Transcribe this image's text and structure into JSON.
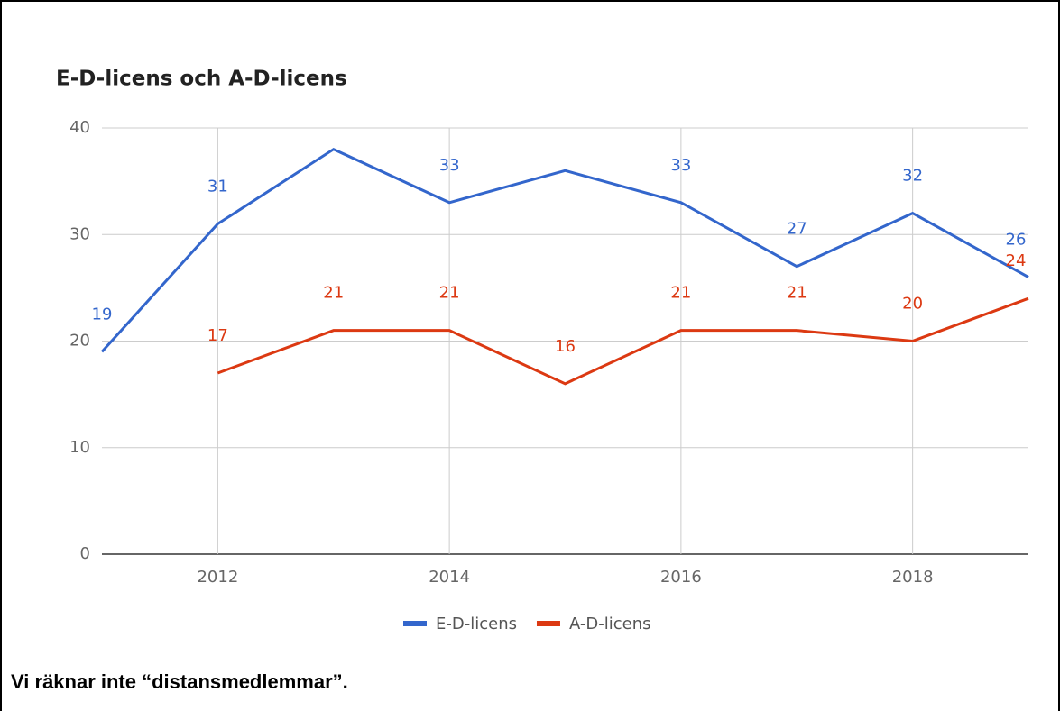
{
  "chart_data": {
    "type": "line",
    "title": "E-D-licens och A-D-licens",
    "x": [
      2011,
      2012,
      2013,
      2014,
      2015,
      2016,
      2017,
      2018,
      2019
    ],
    "series": [
      {
        "name": "E-D-licens",
        "color": "#3366cc",
        "values": [
          19,
          31,
          38,
          33,
          36,
          33,
          27,
          32,
          26
        ],
        "value_labels": [
          "19",
          "31",
          null,
          "33",
          null,
          "33",
          "27",
          "32",
          "26"
        ]
      },
      {
        "name": "A-D-licens",
        "color": "#dc3912",
        "values": [
          null,
          17,
          21,
          21,
          16,
          21,
          21,
          20,
          24
        ],
        "value_labels": [
          null,
          "17",
          "21",
          "21",
          "16",
          "21",
          "21",
          "20",
          "24"
        ]
      }
    ],
    "xlim": [
      2011,
      2019
    ],
    "xticks": [
      2012,
      2014,
      2016,
      2018
    ],
    "ylim": [
      0,
      40
    ],
    "yticks": [
      0,
      10,
      20,
      30,
      40
    ],
    "grid": true,
    "legend": "bottom"
  },
  "caption": "Vi räknar inte “distansmedlemmar”."
}
